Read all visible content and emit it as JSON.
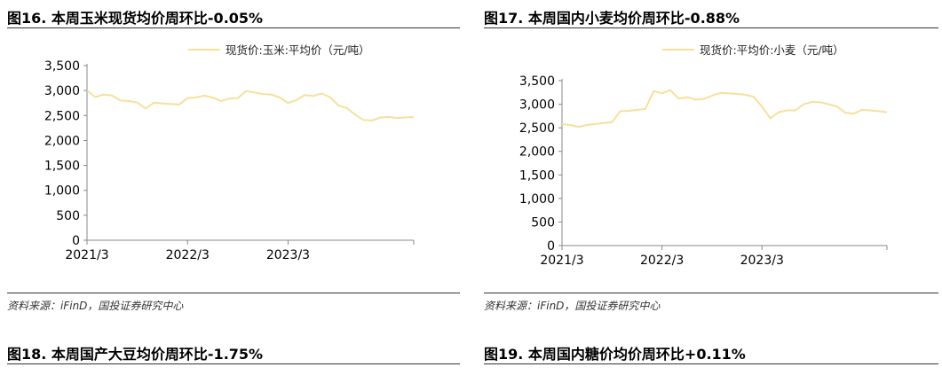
{
  "panels": [
    {
      "title": "图16. 本周玉米现货均价周环比-0.05%",
      "source": "资料来源：iFinD，国投证券研究中心",
      "chart_data": {
        "type": "line",
        "legend": "现货价:玉米:平均价（元/吨）",
        "legend_position": "top-center",
        "x_start": "2021/3",
        "x_end": "2024/6",
        "x_tick_labels": [
          "2021/3",
          "2022/3",
          "2023/3"
        ],
        "ylim": [
          0,
          3500
        ],
        "y_tick_labels": [
          "0",
          "500",
          "1,000",
          "1,500",
          "2,000",
          "2,500",
          "3,000",
          "3,500"
        ],
        "grid": false,
        "color": "#F7E09A",
        "series": [
          {
            "x": [
              "2021/3",
              "2021/4",
              "2021/5",
              "2021/6",
              "2021/7",
              "2021/8",
              "2021/9",
              "2021/10",
              "2021/11",
              "2021/12",
              "2022/1",
              "2022/2",
              "2022/3",
              "2022/4",
              "2022/5",
              "2022/6",
              "2022/7",
              "2022/8",
              "2022/9",
              "2022/10",
              "2022/11",
              "2022/12",
              "2023/1",
              "2023/2",
              "2023/3",
              "2023/4",
              "2023/5",
              "2023/6",
              "2023/7",
              "2023/8",
              "2023/9",
              "2023/10",
              "2023/11",
              "2023/12",
              "2024/1",
              "2024/2",
              "2024/3",
              "2024/4",
              "2024/5",
              "2024/6"
            ],
            "values": [
              3000,
              2870,
              2920,
              2900,
              2800,
              2790,
              2760,
              2640,
              2760,
              2740,
              2730,
              2720,
              2850,
              2860,
              2900,
              2860,
              2790,
              2840,
              2850,
              2990,
              2960,
              2930,
              2920,
              2860,
              2750,
              2810,
              2910,
              2890,
              2940,
              2870,
              2700,
              2650,
              2520,
              2410,
              2400,
              2460,
              2470,
              2450,
              2460,
              2470
            ]
          }
        ]
      }
    },
    {
      "title": "图17. 本周国内小麦均价周环比-0.88%",
      "source": "资料来源：iFinD，国投证券研究中心",
      "chart_data": {
        "type": "line",
        "legend": "现货价:平均价:小麦（元/吨）",
        "legend_position": "top-center",
        "x_start": "2021/3",
        "x_end": "2024/6",
        "x_tick_labels": [
          "2021/3",
          "2022/3",
          "2023/3"
        ],
        "ylim": [
          0,
          3500
        ],
        "y_tick_labels": [
          "0",
          "500",
          "1,000",
          "1,500",
          "2,000",
          "2,500",
          "3,000",
          "3,500"
        ],
        "grid": false,
        "color": "#F7E09A",
        "series": [
          {
            "x": [
              "2021/3",
              "2021/4",
              "2021/5",
              "2021/6",
              "2021/7",
              "2021/8",
              "2021/9",
              "2021/10",
              "2021/11",
              "2021/12",
              "2022/1",
              "2022/2",
              "2022/3",
              "2022/4",
              "2022/5",
              "2022/6",
              "2022/7",
              "2022/8",
              "2022/9",
              "2022/10",
              "2022/11",
              "2022/12",
              "2023/1",
              "2023/2",
              "2023/3",
              "2023/4",
              "2023/5",
              "2023/6",
              "2023/7",
              "2023/8",
              "2023/9",
              "2023/10",
              "2023/11",
              "2023/12",
              "2024/1",
              "2024/2",
              "2024/3",
              "2024/4",
              "2024/5",
              "2024/6"
            ],
            "values": [
              2580,
              2560,
              2520,
              2560,
              2580,
              2600,
              2620,
              2850,
              2860,
              2880,
              2900,
              3280,
              3230,
              3300,
              3120,
              3150,
              3100,
              3110,
              3180,
              3240,
              3230,
              3220,
              3200,
              3160,
              2950,
              2700,
              2830,
              2870,
              2870,
              3000,
              3050,
              3040,
              3000,
              2950,
              2820,
              2800,
              2880,
              2870,
              2850,
              2830
            ]
          }
        ]
      }
    },
    {
      "title": "图18. 本周国产大豆均价周环比-1.75%"
    },
    {
      "title": "图19. 本周国内糖价均价周环比+0.11%"
    }
  ]
}
